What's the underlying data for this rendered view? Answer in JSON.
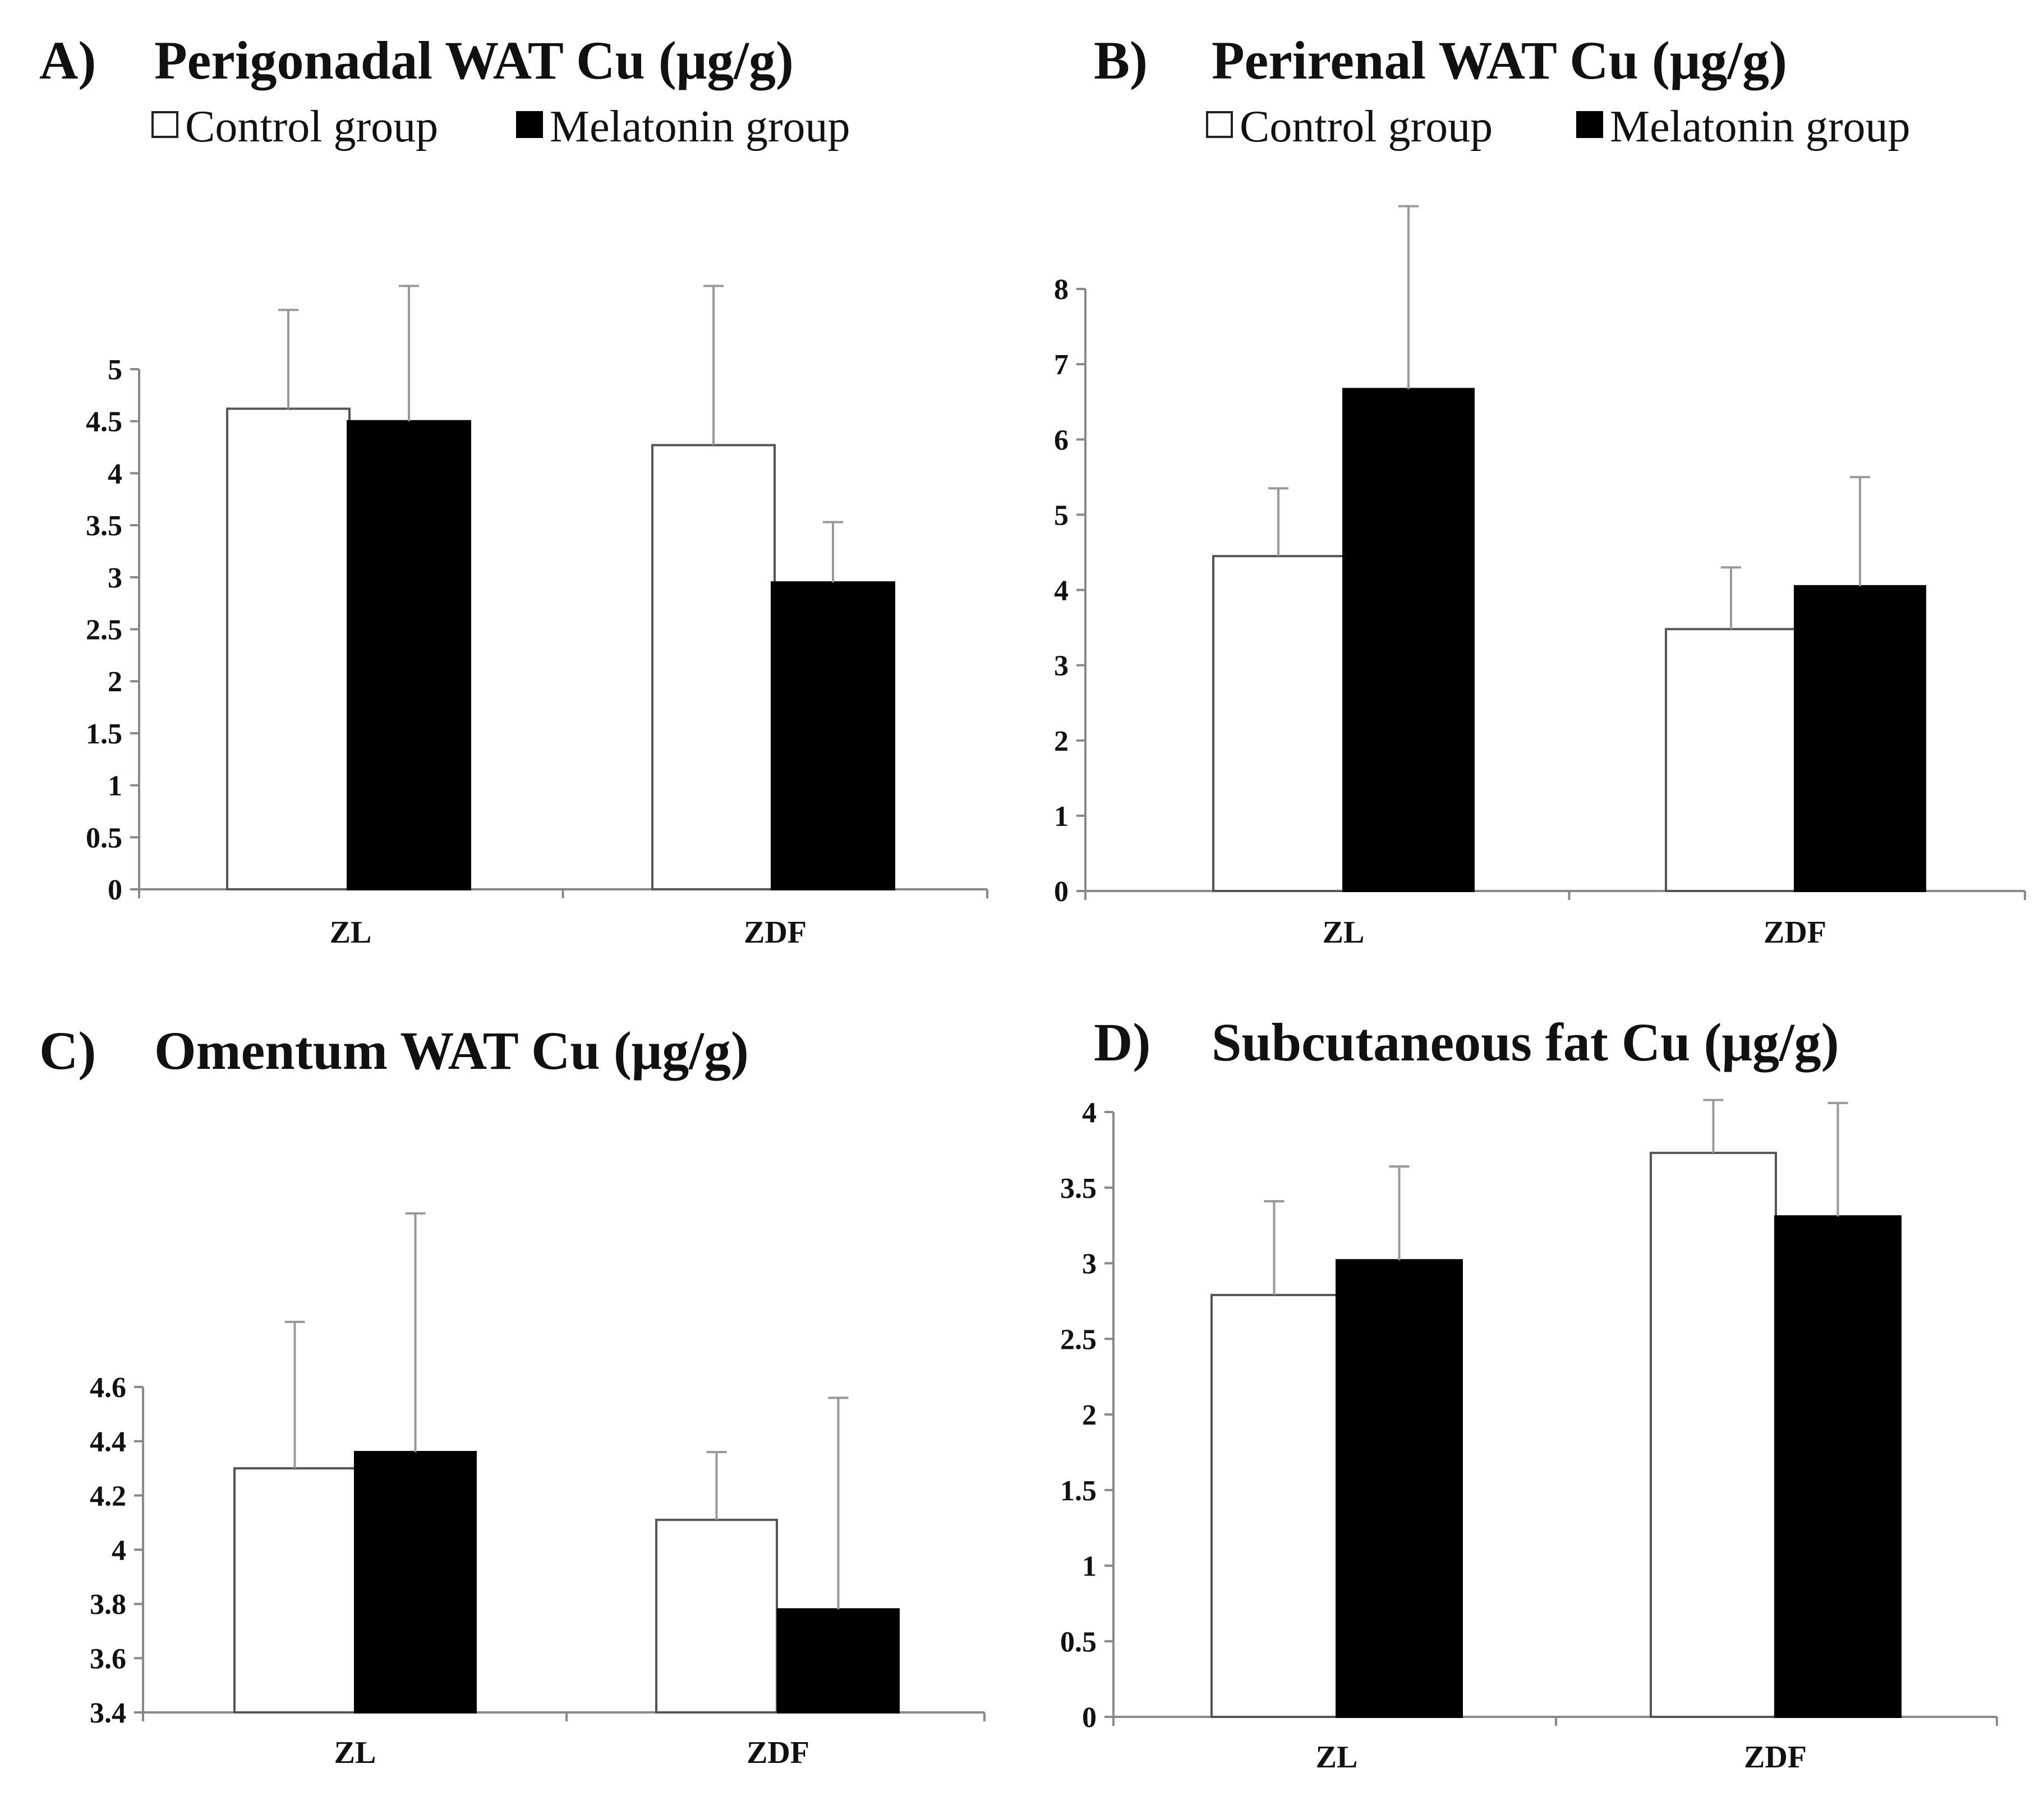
{
  "legend": {
    "control": "Control group",
    "melatonin": "Melatonin group"
  },
  "colors": {
    "control_fill": "#ffffff",
    "melatonin_fill": "#000000",
    "axis": "#888888",
    "bar_stroke": "#555555",
    "error_bar": "#999999"
  },
  "chart_data": [
    {
      "id": "A",
      "letter": "A)",
      "type": "bar",
      "title": "Perigonadal WAT Cu (μg/g)",
      "show_legend": true,
      "categories": [
        "ZL",
        "ZDF"
      ],
      "series": [
        {
          "name": "Control group",
          "values": [
            4.62,
            4.27
          ],
          "errors": [
            0.95,
            1.53
          ]
        },
        {
          "name": "Melatonin group",
          "values": [
            4.5,
            2.95
          ],
          "errors": [
            1.3,
            0.58
          ]
        }
      ],
      "yticks": [
        "0",
        "0.5",
        "1",
        "1.5",
        "2",
        "2.5",
        "3",
        "3.5",
        "4",
        "4.5",
        "5"
      ],
      "ylim": [
        0,
        5
      ],
      "grid": false
    },
    {
      "id": "B",
      "letter": "B)",
      "type": "bar",
      "title": "Perirenal WAT Cu (μg/g)",
      "show_legend": true,
      "categories": [
        "ZL",
        "ZDF"
      ],
      "series": [
        {
          "name": "Control group",
          "values": [
            4.45,
            3.48
          ],
          "errors": [
            0.9,
            0.82
          ]
        },
        {
          "name": "Melatonin group",
          "values": [
            6.67,
            4.05
          ],
          "errors": [
            2.43,
            1.45
          ]
        }
      ],
      "yticks": [
        "0",
        "1",
        "2",
        "3",
        "4",
        "5",
        "6",
        "7",
        "8"
      ],
      "ylim": [
        0,
        8
      ],
      "grid": false
    },
    {
      "id": "C",
      "letter": "C)",
      "type": "bar",
      "title": "Omentum WAT Cu (μg/g)",
      "show_legend": false,
      "categories": [
        "ZL",
        "ZDF"
      ],
      "series": [
        {
          "name": "Control group",
          "values": [
            4.3,
            4.11
          ],
          "errors": [
            0.54,
            0.25
          ]
        },
        {
          "name": "Melatonin group",
          "values": [
            4.36,
            3.78
          ],
          "errors": [
            0.88,
            0.78
          ]
        }
      ],
      "yticks": [
        "3.4",
        "3.6",
        "3.8",
        "4",
        "4.2",
        "4.4",
        "4.6"
      ],
      "ylim": [
        3.4,
        4.6
      ],
      "grid": false
    },
    {
      "id": "D",
      "letter": "D)",
      "type": "bar",
      "title": "Subcutaneous fat Cu (μg/g)",
      "show_legend": false,
      "categories": [
        "ZL",
        "ZDF"
      ],
      "series": [
        {
          "name": "Control group",
          "values": [
            2.79,
            3.73
          ],
          "errors": [
            0.62,
            0.35
          ]
        },
        {
          "name": "Melatonin group",
          "values": [
            3.02,
            3.31
          ],
          "errors": [
            0.62,
            0.75
          ]
        }
      ],
      "yticks": [
        "0",
        "0.5",
        "1",
        "1.5",
        "2",
        "2.5",
        "3",
        "3.5",
        "4"
      ],
      "ylim": [
        0,
        4
      ],
      "grid": false
    }
  ]
}
